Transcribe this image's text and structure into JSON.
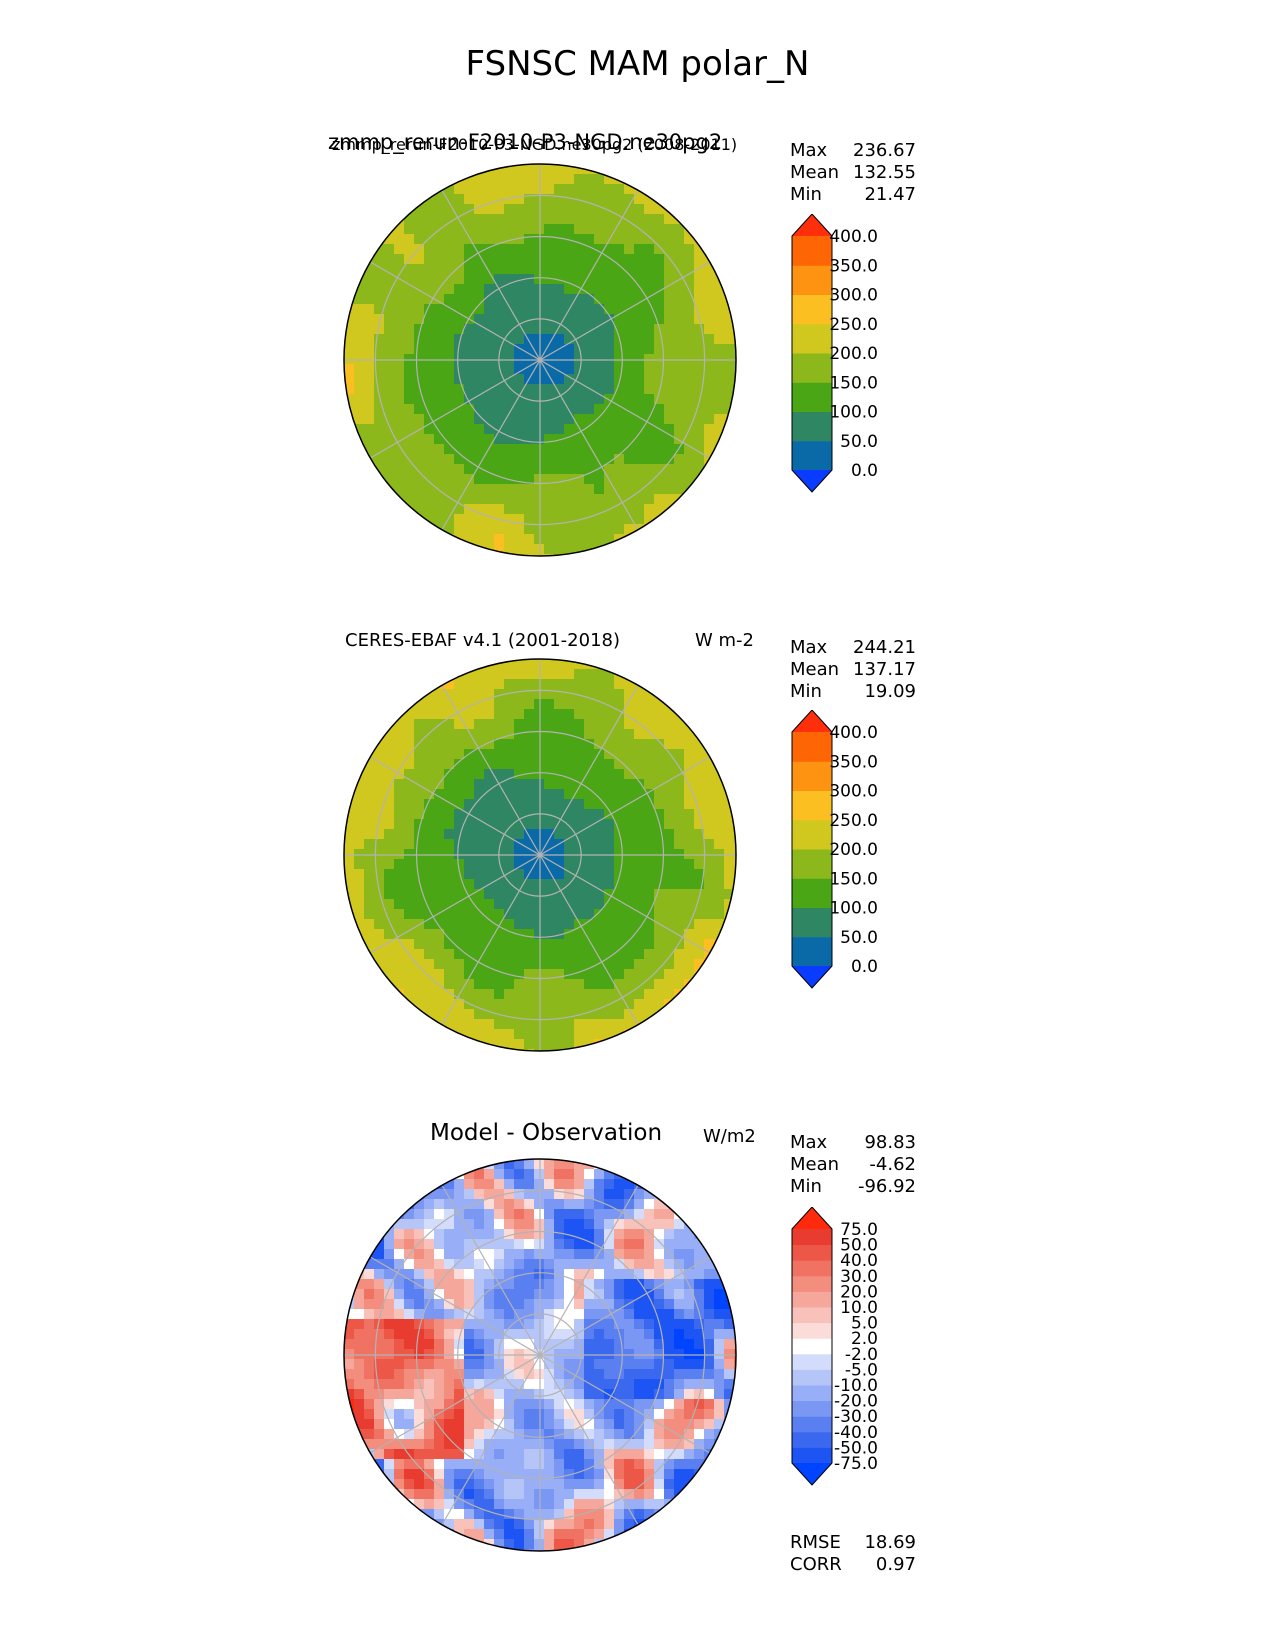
{
  "figure": {
    "title": "FSNSC MAM polar_N"
  },
  "chart_data": [
    {
      "type": "heatmap",
      "projection": "north-polar-stereographic",
      "title_left": "zmmp_rerun-F2010-P3-NGD.ne30pg2",
      "title_left_overprint": "zmmp_rerun-F2010-P3-NGD.ne30pg2 (2008-2011)",
      "title_right": "",
      "stats": [
        {
          "label": "Max",
          "value": "236.67"
        },
        {
          "label": "Mean",
          "value": "132.55"
        },
        {
          "label": "Min",
          "value": "21.47"
        }
      ],
      "colorbar": {
        "ticks": [
          "400.0",
          "350.0",
          "300.0",
          "250.0",
          "200.0",
          "150.0",
          "100.0",
          "50.0",
          "0.0"
        ],
        "colors": [
          "#0a3cff",
          "#0a6aa8",
          "#2e8663",
          "#4aa614",
          "#8db81c",
          "#d0c81f",
          "#fbbf21",
          "#fd9310",
          "#fd6505",
          "#ff2f0c"
        ],
        "extend": "both"
      },
      "field": {
        "pole_value": 30,
        "edge_value": 215
      }
    },
    {
      "type": "heatmap",
      "projection": "north-polar-stereographic",
      "title_left": "CERES-EBAF v4.1 (2001-2018)",
      "title_right": "W m-2",
      "stats": [
        {
          "label": "Max",
          "value": "244.21"
        },
        {
          "label": "Mean",
          "value": "137.17"
        },
        {
          "label": "Min",
          "value": "19.09"
        }
      ],
      "colorbar": {
        "ticks": [
          "400.0",
          "350.0",
          "300.0",
          "250.0",
          "200.0",
          "150.0",
          "100.0",
          "50.0",
          "0.0"
        ],
        "colors": [
          "#0a3cff",
          "#0a6aa8",
          "#2e8663",
          "#4aa614",
          "#8db81c",
          "#d0c81f",
          "#fbbf21",
          "#fd9310",
          "#fd6505",
          "#ff2f0c"
        ],
        "extend": "both"
      },
      "field": {
        "pole_value": 28,
        "edge_value": 225
      }
    },
    {
      "type": "heatmap",
      "projection": "north-polar-stereographic",
      "title_left": "Model - Observation",
      "title_right": "W/m2",
      "stats": [
        {
          "label": "Max",
          "value": "98.83"
        },
        {
          "label": "Mean",
          "value": "-4.62"
        },
        {
          "label": "Min",
          "value": "-96.92"
        }
      ],
      "metrics": [
        {
          "label": "RMSE",
          "value": "18.69"
        },
        {
          "label": "CORR",
          "value": "0.97"
        }
      ],
      "colorbar": {
        "ticks": [
          "75.0",
          "50.0",
          "40.0",
          "30.0",
          "20.0",
          "10.0",
          "5.0",
          "2.0",
          "-2.0",
          "-5.0",
          "-10.0",
          "-20.0",
          "-30.0",
          "-40.0",
          "-50.0",
          "-75.0"
        ],
        "colors": [
          "#0044ff",
          "#1d55f5",
          "#3a68ee",
          "#5a7ff0",
          "#7a97f3",
          "#98aef6",
          "#b5c5f8",
          "#d3dcfb",
          "#ffffff",
          "#fbdcd8",
          "#f8c2ba",
          "#f6a79c",
          "#f38d7e",
          "#f07262",
          "#ec5748",
          "#e83c30",
          "#ff2a0c"
        ],
        "extend": "both"
      },
      "field": {
        "pole_value": -10,
        "edge_value": -6
      }
    }
  ]
}
